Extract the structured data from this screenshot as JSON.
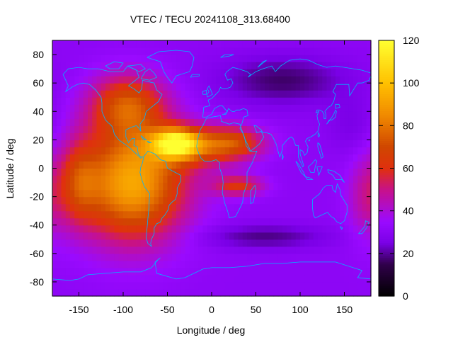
{
  "chart_data": {
    "type": "heatmap",
    "title": "VTEC / TECU 20241108_313.68400",
    "xlabel": "Longitude / deg",
    "ylabel": "Latitude / deg",
    "xlim": [
      -180,
      180
    ],
    "ylim": [
      -90,
      90
    ],
    "xticks": [
      -150,
      -100,
      -50,
      0,
      50,
      100,
      150
    ],
    "yticks": [
      -80,
      -60,
      -40,
      -20,
      0,
      20,
      40,
      60,
      80
    ],
    "colorbar": {
      "min": 0,
      "max": 120,
      "ticks": [
        0,
        20,
        40,
        60,
        80,
        100,
        120
      ],
      "palette": [
        {
          "value": 0,
          "color": "#000000"
        },
        {
          "value": 15,
          "color": "#30004a"
        },
        {
          "value": 25,
          "color": "#7a00e6"
        },
        {
          "value": 35,
          "color": "#9a0aff"
        },
        {
          "value": 50,
          "color": "#c7118a"
        },
        {
          "value": 60,
          "color": "#e0300e"
        },
        {
          "value": 70,
          "color": "#d04600"
        },
        {
          "value": 85,
          "color": "#f08a00"
        },
        {
          "value": 100,
          "color": "#ffc000"
        },
        {
          "value": 120,
          "color": "#ffff30"
        }
      ]
    },
    "field": {
      "background": 31,
      "features": [
        {
          "lon": -90,
          "lat": -10,
          "amp": 62,
          "slon": 42,
          "slat": 28
        },
        {
          "lon": -40,
          "lat": 18,
          "amp": 62,
          "slon": 18,
          "slat": 7
        },
        {
          "lon": -20,
          "lat": 15,
          "amp": 28,
          "slon": 35,
          "slat": 10
        },
        {
          "lon": 25,
          "lat": 18,
          "amp": 32,
          "slon": 25,
          "slat": 8
        },
        {
          "lon": 30,
          "lat": -12,
          "amp": 30,
          "slon": 20,
          "slat": 5
        },
        {
          "lon": -95,
          "lat": 45,
          "amp": 38,
          "slon": 30,
          "slat": 15
        },
        {
          "lon": -150,
          "lat": -10,
          "amp": 24,
          "slon": 15,
          "slat": 20
        },
        {
          "lon": 175,
          "lat": -20,
          "amp": 14,
          "slon": 15,
          "slat": 20
        },
        {
          "lon": 80,
          "lat": 62,
          "amp": -14,
          "slon": 50,
          "slat": 12
        },
        {
          "lon": 60,
          "lat": -48,
          "amp": -12,
          "slon": 50,
          "slat": 6
        },
        {
          "lon": 160,
          "lat": 30,
          "amp": -6,
          "slon": 20,
          "slat": 15
        }
      ]
    },
    "overlay": "coastlines"
  }
}
